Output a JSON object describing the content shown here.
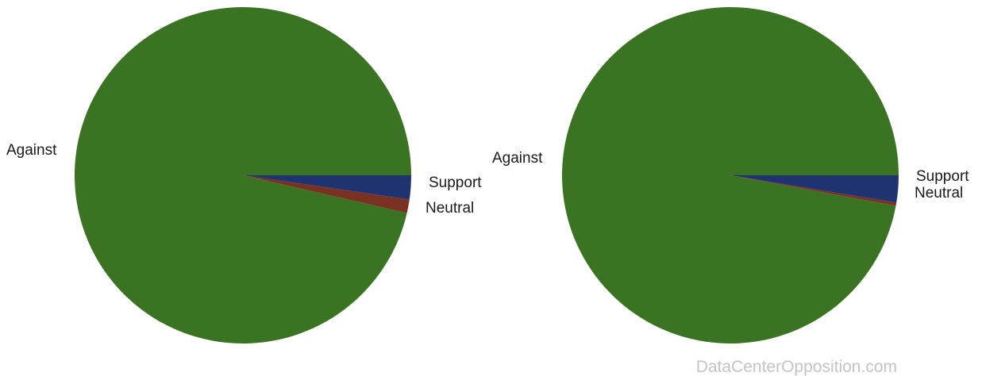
{
  "chart_data": [
    {
      "type": "pie",
      "slices": [
        {
          "label": "Against",
          "value": 96.4,
          "color": "#3a7322"
        },
        {
          "label": "Support",
          "value": 1.3,
          "color": "#7b3121"
        },
        {
          "label": "Neutral",
          "value": 2.3,
          "color": "#1f3370"
        }
      ]
    },
    {
      "type": "pie",
      "slices": [
        {
          "label": "Against",
          "value": 97.1,
          "color": "#3a7322"
        },
        {
          "label": "Support",
          "value": 0.3,
          "color": "#7b3121"
        },
        {
          "label": "Neutral",
          "value": 2.6,
          "color": "#1f3370"
        }
      ]
    }
  ],
  "watermark": "DataCenterOpposition.com"
}
